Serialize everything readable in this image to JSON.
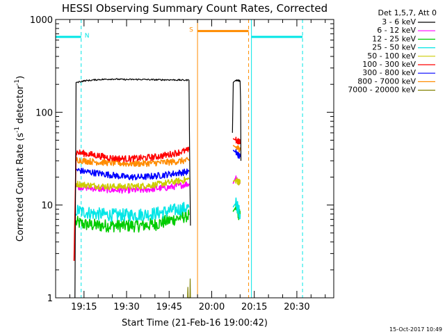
{
  "chart_data": {
    "type": "line",
    "title": "HESSI Observing Summary Count Rates, Corrected",
    "xlabel": "Start Time (21-Feb-16 19:00:42)",
    "ylabel_main": "Corrected Count Rate (s",
    "ylabel_sup1": "-1",
    "ylabel_mid": " detector",
    "ylabel_sup2": "-1",
    "ylabel_end": ")",
    "yscale": "log",
    "ylim": [
      1,
      1000
    ],
    "xlim_min": [
      5,
      43
    ],
    "x_ticks": [
      {
        "t": 15,
        "label": "19:15"
      },
      {
        "t": 30,
        "label": "19:30"
      },
      {
        "t": 45,
        "label": "19:45"
      },
      {
        "t": 60,
        "label": "20:00"
      },
      {
        "t": 75,
        "label": "20:15"
      },
      {
        "t": 90,
        "label": "20:30"
      }
    ],
    "y_ticks": [
      {
        "v": 1,
        "label": "1"
      },
      {
        "v": 10,
        "label": "10"
      },
      {
        "v": 100,
        "label": "100"
      },
      {
        "v": 1000,
        "label": "1000"
      }
    ],
    "legend_title": "Det 1,5,7, Att 0",
    "legend_position": "top-right outside",
    "series": [
      {
        "name": "3 - 6 keV",
        "color": "#000000",
        "segments": [
          {
            "points": [
              [
                11.8,
                1.0
              ],
              [
                12.2,
                210
              ],
              [
                13,
                212
              ],
              [
                15,
                218
              ],
              [
                20,
                225
              ],
              [
                25,
                228
              ],
              [
                30,
                225
              ],
              [
                35,
                226
              ],
              [
                40,
                224
              ],
              [
                45,
                224
              ],
              [
                50,
                222
              ],
              [
                52,
                222
              ],
              [
                52.3,
                20
              ],
              [
                52.5,
                6
              ]
            ]
          },
          {
            "points": [
              [
                67.3,
                60
              ],
              [
                67.6,
                210
              ],
              [
                68.5,
                222
              ],
              [
                70,
                218
              ],
              [
                70.2,
                120
              ],
              [
                70.3,
                30
              ]
            ]
          }
        ]
      },
      {
        "name": "6 - 12 keV",
        "color": "#ff00ff",
        "segments": [
          {
            "points": [
              [
                12.2,
                16
              ],
              [
                15,
                15.5
              ],
              [
                20,
                15
              ],
              [
                25,
                14.5
              ],
              [
                30,
                14.5
              ],
              [
                35,
                14.5
              ],
              [
                40,
                15
              ],
              [
                45,
                15.5
              ],
              [
                50,
                16.5
              ],
              [
                52,
                17
              ]
            ]
          },
          {
            "points": [
              [
                67.5,
                17
              ],
              [
                68.5,
                20
              ],
              [
                70,
                17
              ]
            ]
          }
        ]
      },
      {
        "name": "12 - 25 keV",
        "color": "#00cc00",
        "segments": [
          {
            "points": [
              [
                12.2,
                6.5
              ],
              [
                15,
                6.2
              ],
              [
                20,
                6.0
              ],
              [
                25,
                6.0
              ],
              [
                30,
                6.0
              ],
              [
                35,
                6.0
              ],
              [
                40,
                6.2
              ],
              [
                45,
                6.8
              ],
              [
                50,
                7.5
              ],
              [
                52,
                7.8
              ]
            ]
          },
          {
            "points": [
              [
                67.5,
                8.5
              ],
              [
                68.5,
                9.5
              ],
              [
                70,
                7.5
              ]
            ]
          }
        ]
      },
      {
        "name": "25 - 50 keV",
        "color": "#00e6e6",
        "segments": [
          {
            "points": [
              [
                12.2,
                8.8
              ],
              [
                15,
                8.4
              ],
              [
                20,
                8.0
              ],
              [
                25,
                7.8
              ],
              [
                30,
                7.8
              ],
              [
                35,
                7.9
              ],
              [
                40,
                8.1
              ],
              [
                45,
                8.6
              ],
              [
                50,
                9.2
              ],
              [
                52,
                9.4
              ]
            ]
          },
          {
            "points": [
              [
                67.5,
                9.5
              ],
              [
                68.5,
                10.5
              ],
              [
                70,
                8.0
              ]
            ]
          }
        ]
      },
      {
        "name": "50 - 100 keV",
        "color": "#cccc00",
        "segments": [
          {
            "points": [
              [
                12.2,
                17
              ],
              [
                15,
                16.5
              ],
              [
                20,
                16
              ],
              [
                25,
                15.8
              ],
              [
                30,
                15.8
              ],
              [
                35,
                16
              ],
              [
                40,
                16.5
              ],
              [
                45,
                17.5
              ],
              [
                50,
                18.5
              ],
              [
                52,
                19
              ]
            ]
          },
          {
            "points": [
              [
                67.5,
                18
              ],
              [
                68.5,
                18.5
              ],
              [
                70,
                17.5
              ]
            ]
          }
        ]
      },
      {
        "name": "100 - 300 keV",
        "color": "#ff0000",
        "segments": [
          {
            "points": [
              [
                11.5,
                2.5
              ],
              [
                12.2,
                37
              ],
              [
                15,
                36
              ],
              [
                20,
                34
              ],
              [
                25,
                32
              ],
              [
                30,
                31.5
              ],
              [
                35,
                32
              ],
              [
                40,
                33
              ],
              [
                45,
                35
              ],
              [
                50,
                38
              ],
              [
                52,
                39
              ]
            ]
          },
          {
            "points": [
              [
                67.5,
                52
              ],
              [
                68.5,
                50
              ],
              [
                70,
                47
              ]
            ]
          }
        ]
      },
      {
        "name": "300 - 800 keV",
        "color": "#0000ff",
        "segments": [
          {
            "points": [
              [
                12.2,
                24
              ],
              [
                15,
                23
              ],
              [
                20,
                22
              ],
              [
                25,
                21
              ],
              [
                30,
                20
              ],
              [
                35,
                20
              ],
              [
                40,
                20.5
              ],
              [
                45,
                21.5
              ],
              [
                50,
                22.5
              ],
              [
                52,
                23
              ]
            ]
          },
          {
            "points": [
              [
                67.5,
                39
              ],
              [
                68.5,
                37
              ],
              [
                70,
                33
              ]
            ]
          }
        ]
      },
      {
        "name": "800 - 7000 keV",
        "color": "#ff8c00",
        "segments": [
          {
            "points": [
              [
                12.2,
                31
              ],
              [
                15,
                30
              ],
              [
                20,
                29
              ],
              [
                25,
                28.5
              ],
              [
                30,
                28
              ],
              [
                35,
                28
              ],
              [
                40,
                28.5
              ],
              [
                45,
                29
              ],
              [
                50,
                30
              ],
              [
                52,
                30
              ]
            ]
          },
          {
            "points": [
              [
                67.5,
                44
              ],
              [
                68.5,
                42
              ],
              [
                70,
                40
              ]
            ]
          }
        ]
      },
      {
        "name": "7000 - 20000 keV",
        "color": "#808000",
        "segments": [
          {
            "points": [
              [
                51.5,
                1.0
              ],
              [
                51.6,
                1.3
              ],
              [
                51.7,
                1.0
              ],
              [
                52.3,
                1.0
              ],
              [
                52.4,
                1.6
              ],
              [
                52.5,
                1.0
              ]
            ]
          }
        ]
      }
    ],
    "flag_markers": [
      {
        "label": "N",
        "color": "#00e6e6",
        "start": 5,
        "end": 14,
        "level": 650
      },
      {
        "label": "S",
        "color": "#ff8c00",
        "start": 55,
        "end": 73,
        "level": 750
      },
      {
        "label": "",
        "color": "#00e6e6",
        "start": 74,
        "end": 92,
        "level": 650
      }
    ],
    "vertical_lines": [
      {
        "t": 5,
        "color": "#00e6e6",
        "style": "solid"
      },
      {
        "t": 14,
        "color": "#00e6e6",
        "style": "dashed"
      },
      {
        "t": 55,
        "color": "#ff8c00",
        "style": "solid"
      },
      {
        "t": 73,
        "color": "#ff8c00",
        "style": "dashed"
      },
      {
        "t": 74,
        "color": "#00e6e6",
        "style": "solid"
      },
      {
        "t": 92,
        "color": "#00e6e6",
        "style": "dashed"
      }
    ]
  },
  "footer": {
    "timestamp": "15-Oct-2017 10:49"
  }
}
